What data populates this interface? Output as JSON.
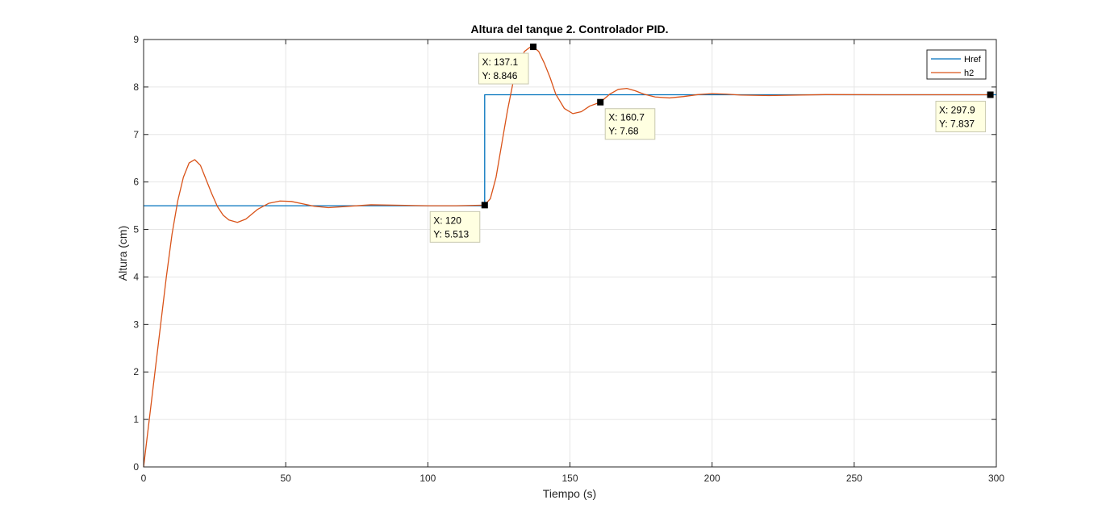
{
  "chart_data": {
    "type": "line",
    "title": "Altura del tanque 2. Controlador PID.",
    "xlabel": "Tiempo (s)",
    "ylabel": "Altura (cm)",
    "xlim": [
      0,
      300
    ],
    "ylim": [
      0,
      9
    ],
    "xticks": [
      "0",
      "50",
      "100",
      "150",
      "200",
      "250",
      "300"
    ],
    "yticks": [
      "0",
      "1",
      "2",
      "3",
      "4",
      "5",
      "6",
      "7",
      "8",
      "9"
    ],
    "grid": true,
    "legend_position": "top-right",
    "series": [
      {
        "name": "Href",
        "color": "#0072bd",
        "x": [
          0,
          120,
          120,
          300
        ],
        "y": [
          5.5,
          5.5,
          7.837,
          7.837
        ]
      },
      {
        "name": "h2",
        "color": "#d95319",
        "x": [
          0,
          2,
          4,
          6,
          8,
          10,
          12,
          14,
          16,
          18,
          20,
          22,
          24,
          26,
          28,
          30,
          33,
          36,
          40,
          44,
          48,
          52,
          56,
          60,
          65,
          70,
          80,
          90,
          100,
          110,
          120,
          122,
          124,
          126,
          128,
          130,
          132,
          134,
          136,
          137.1,
          139,
          141,
          143,
          145,
          148,
          151,
          154,
          157,
          160.7,
          164,
          167,
          170,
          173,
          176,
          180,
          185,
          190,
          195,
          200,
          205,
          210,
          220,
          240,
          260,
          280,
          297.9
        ],
        "y": [
          0,
          1.0,
          2.0,
          3.0,
          4.0,
          4.9,
          5.6,
          6.1,
          6.4,
          6.47,
          6.35,
          6.05,
          5.75,
          5.48,
          5.3,
          5.2,
          5.15,
          5.22,
          5.42,
          5.55,
          5.6,
          5.59,
          5.54,
          5.49,
          5.46,
          5.48,
          5.52,
          5.51,
          5.5,
          5.5,
          5.513,
          5.65,
          6.1,
          6.8,
          7.5,
          8.1,
          8.5,
          8.75,
          8.84,
          8.846,
          8.75,
          8.5,
          8.2,
          7.85,
          7.55,
          7.44,
          7.48,
          7.6,
          7.68,
          7.85,
          7.95,
          7.97,
          7.92,
          7.85,
          7.79,
          7.77,
          7.8,
          7.84,
          7.86,
          7.85,
          7.83,
          7.82,
          7.84,
          7.837,
          7.837,
          7.837
        ]
      }
    ],
    "datatips": [
      {
        "x": 120,
        "y": 5.513,
        "lines": [
          "X: 120",
          "Y: 5.513"
        ],
        "place": "below-left"
      },
      {
        "x": 137.1,
        "y": 8.846,
        "lines": [
          "X: 137.1",
          "Y: 8.846"
        ],
        "place": "below-left"
      },
      {
        "x": 160.7,
        "y": 7.68,
        "lines": [
          "X: 160.7",
          "Y: 7.68"
        ],
        "place": "below-right"
      },
      {
        "x": 297.9,
        "y": 7.837,
        "lines": [
          "X: 297.9",
          "Y: 7.837"
        ],
        "place": "below-left"
      }
    ]
  }
}
